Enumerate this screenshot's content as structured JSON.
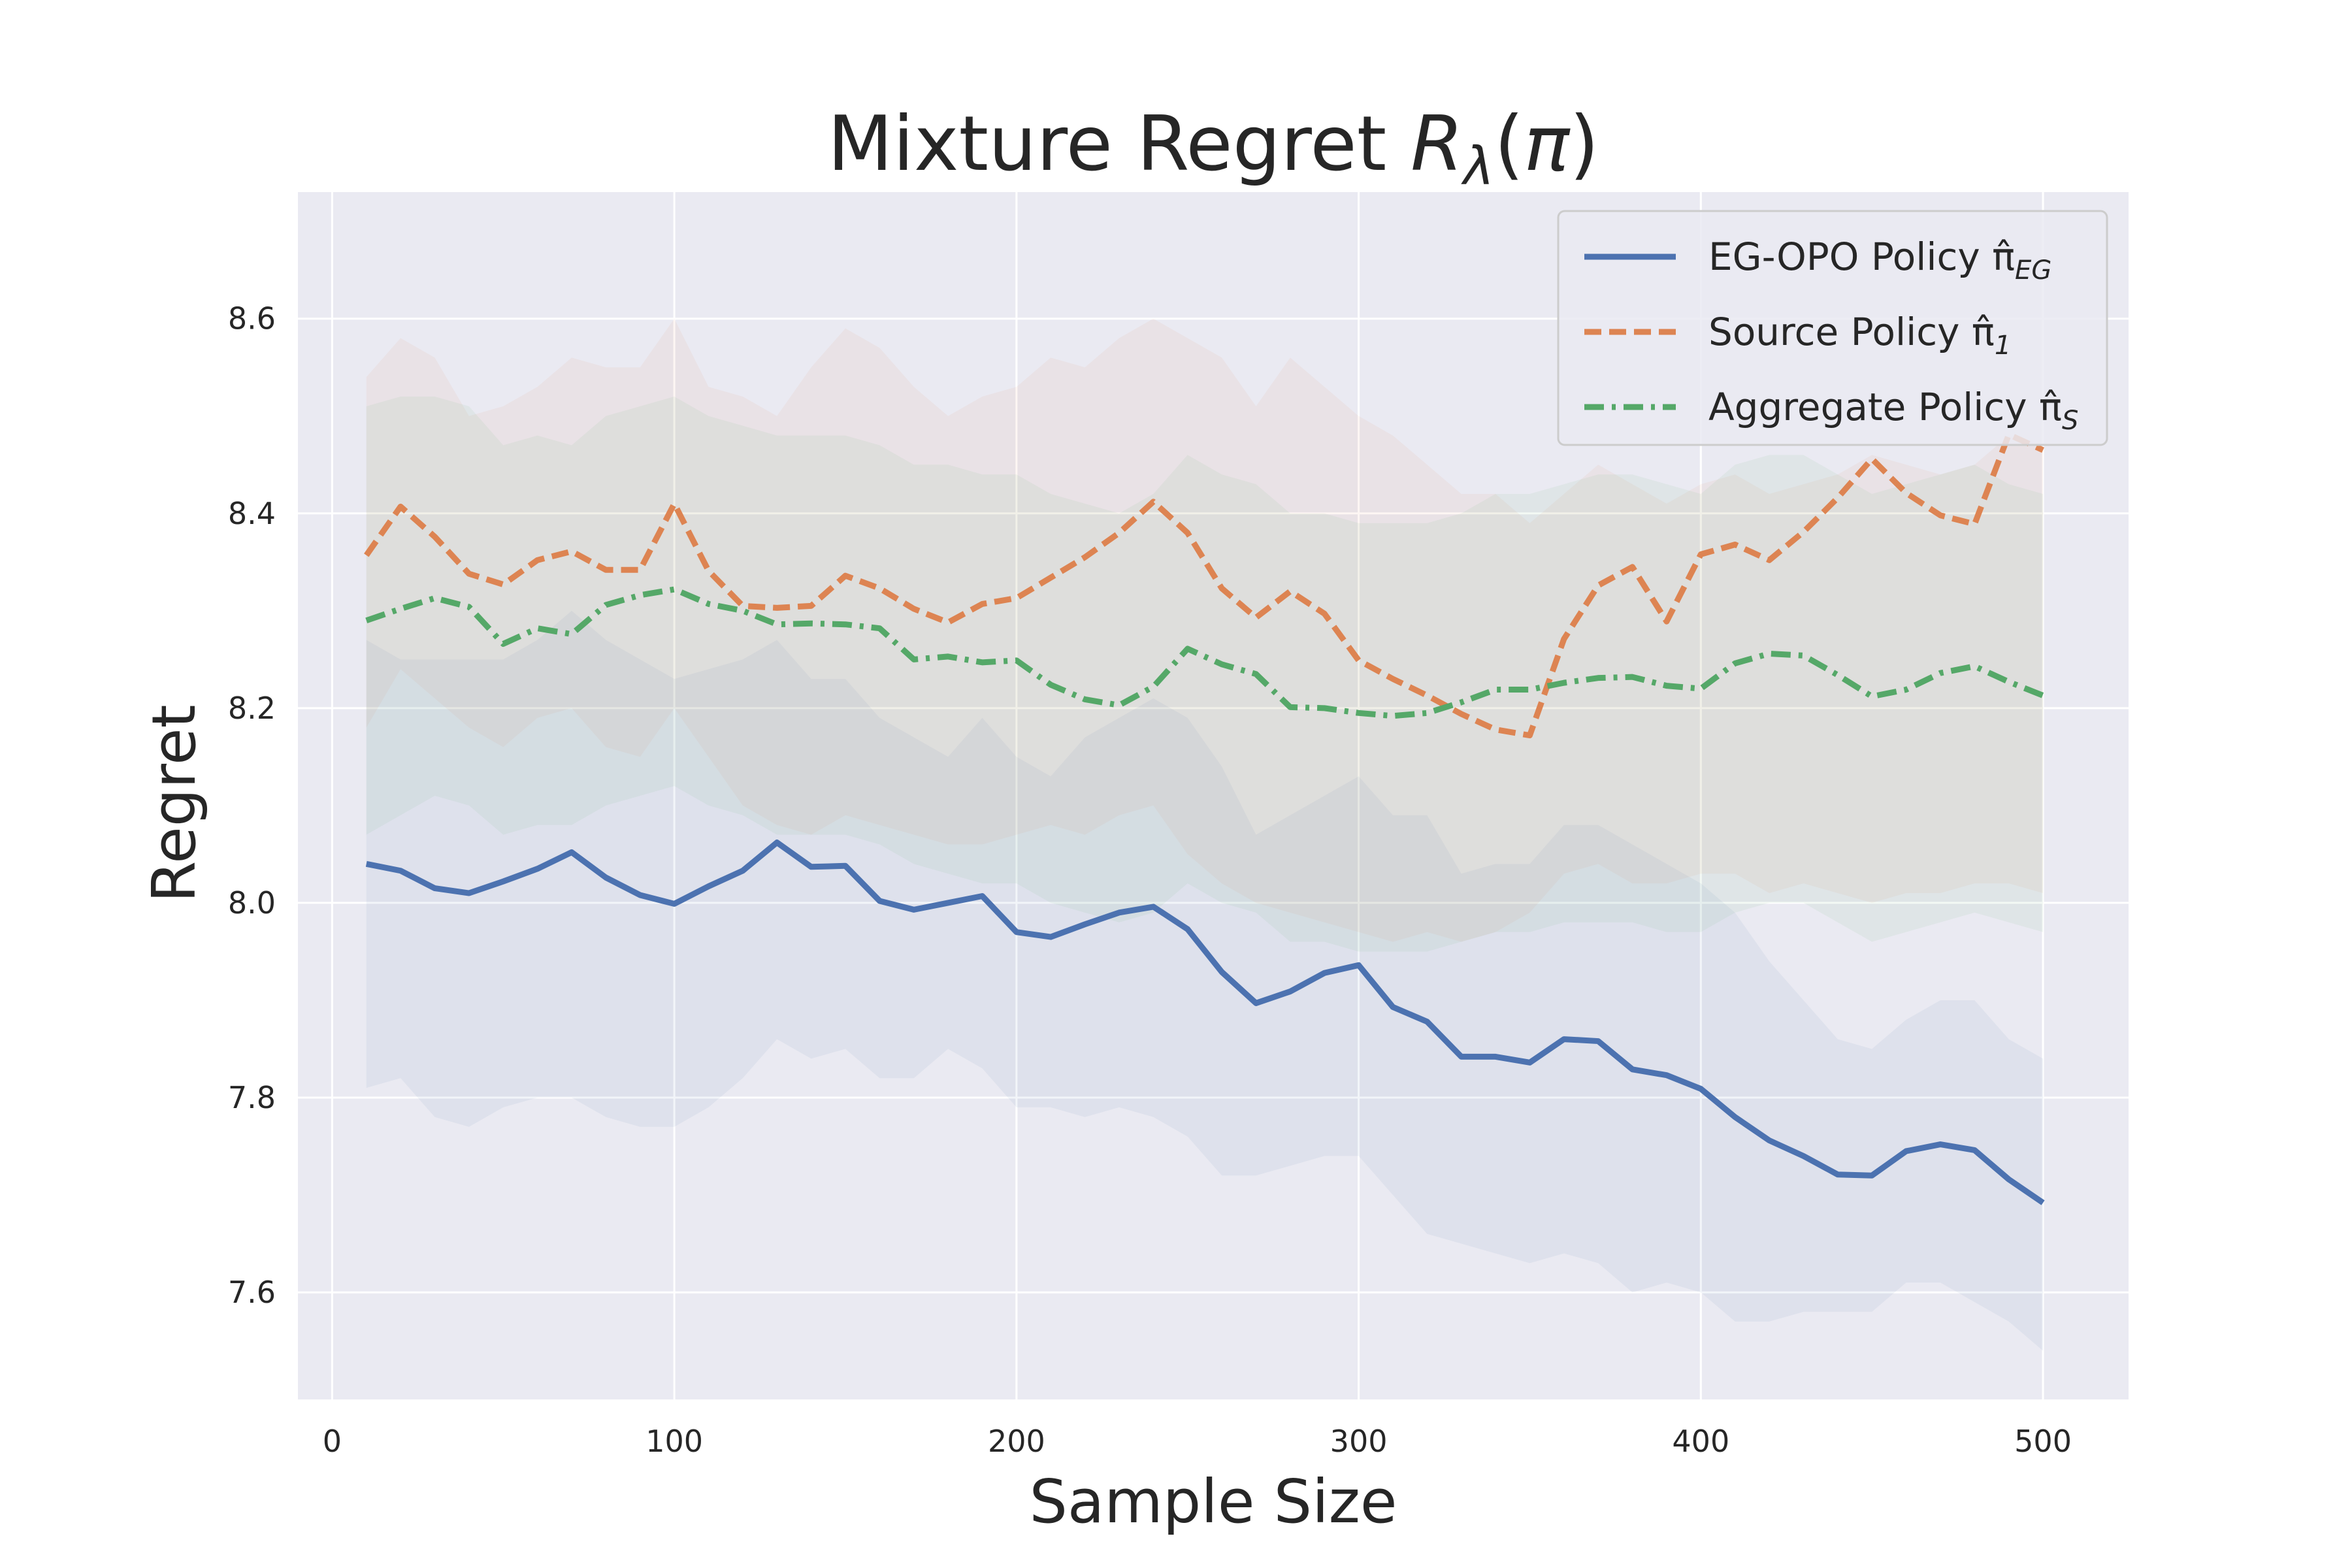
{
  "chart_data": {
    "type": "line",
    "title": "Mixture Regret  Rλ(π)",
    "xlabel": "Sample Size",
    "ylabel": "Regret",
    "xlim": [
      -10,
      525
    ],
    "ylim": [
      7.49,
      8.73
    ],
    "xticks": [
      0,
      100,
      200,
      300,
      400,
      500
    ],
    "yticks": [
      7.6,
      7.8,
      8.0,
      8.2,
      8.4,
      8.6
    ],
    "xtick_labels": [
      "0",
      "100",
      "200",
      "300",
      "400",
      "500"
    ],
    "ytick_labels": [
      "7.6",
      "7.8",
      "8.0",
      "8.2",
      "8.4",
      "8.6"
    ],
    "grid": true,
    "background": "#eaeaf2",
    "legend_position": "top-right",
    "x": [
      10,
      20,
      30,
      40,
      50,
      60,
      70,
      80,
      90,
      100,
      110,
      120,
      130,
      140,
      150,
      160,
      170,
      180,
      190,
      200,
      210,
      220,
      230,
      240,
      250,
      260,
      270,
      280,
      290,
      300,
      310,
      320,
      330,
      340,
      350,
      360,
      370,
      380,
      390,
      400,
      410,
      420,
      430,
      440,
      450,
      460,
      470,
      480,
      490,
      500
    ],
    "series": [
      {
        "name": "EG-OPO Policy π̂",
        "name_sub": "EG",
        "color": "#4c72b0",
        "style": "solid",
        "values": [
          8.04,
          8.033,
          8.015,
          8.01,
          8.022,
          8.035,
          8.052,
          8.026,
          8.008,
          7.999,
          8.017,
          8.033,
          8.062,
          8.037,
          8.038,
          8.002,
          7.993,
          8.0,
          8.007,
          7.97,
          7.965,
          7.978,
          7.99,
          7.996,
          7.973,
          7.929,
          7.897,
          7.909,
          7.928,
          7.936,
          7.893,
          7.878,
          7.842,
          7.842,
          7.836,
          7.86,
          7.858,
          7.829,
          7.823,
          7.809,
          7.78,
          7.756,
          7.74,
          7.721,
          7.72,
          7.745,
          7.752,
          7.746,
          7.716,
          7.692
        ],
        "band_low": [
          7.81,
          7.82,
          7.78,
          7.77,
          7.79,
          7.8,
          7.8,
          7.78,
          7.77,
          7.77,
          7.79,
          7.82,
          7.86,
          7.84,
          7.85,
          7.82,
          7.82,
          7.85,
          7.83,
          7.79,
          7.79,
          7.78,
          7.79,
          7.78,
          7.76,
          7.72,
          7.72,
          7.73,
          7.74,
          7.74,
          7.7,
          7.66,
          7.65,
          7.64,
          7.63,
          7.64,
          7.63,
          7.6,
          7.61,
          7.6,
          7.57,
          7.57,
          7.58,
          7.58,
          7.58,
          7.61,
          7.61,
          7.59,
          7.57,
          7.54
        ],
        "band_high": [
          8.27,
          8.25,
          8.25,
          8.25,
          8.25,
          8.27,
          8.3,
          8.27,
          8.25,
          8.23,
          8.24,
          8.25,
          8.27,
          8.23,
          8.23,
          8.19,
          8.17,
          8.15,
          8.19,
          8.15,
          8.13,
          8.17,
          8.19,
          8.21,
          8.19,
          8.14,
          8.07,
          8.09,
          8.11,
          8.13,
          8.09,
          8.09,
          8.03,
          8.04,
          8.04,
          8.08,
          8.08,
          8.06,
          8.04,
          8.02,
          7.99,
          7.94,
          7.9,
          7.86,
          7.85,
          7.88,
          7.9,
          7.9,
          7.86,
          7.84
        ]
      },
      {
        "name": "Source Policy π̂",
        "name_sub": "1",
        "color": "#dd8452",
        "style": "dashed",
        "values": [
          8.357,
          8.407,
          8.376,
          8.338,
          8.327,
          8.352,
          8.361,
          8.342,
          8.342,
          8.41,
          8.341,
          8.305,
          8.303,
          8.305,
          8.336,
          8.323,
          8.302,
          8.288,
          8.307,
          8.313,
          8.334,
          8.355,
          8.38,
          8.412,
          8.38,
          8.323,
          8.293,
          8.32,
          8.297,
          8.249,
          8.23,
          8.213,
          8.194,
          8.178,
          8.172,
          8.271,
          8.326,
          8.345,
          8.289,
          8.358,
          8.368,
          8.352,
          8.381,
          8.416,
          8.456,
          8.421,
          8.398,
          8.389,
          8.481,
          8.465
        ],
        "band_low": [
          8.18,
          8.24,
          8.21,
          8.18,
          8.16,
          8.19,
          8.2,
          8.16,
          8.15,
          8.2,
          8.15,
          8.1,
          8.08,
          8.07,
          8.09,
          8.08,
          8.07,
          8.06,
          8.06,
          8.07,
          8.08,
          8.07,
          8.09,
          8.1,
          8.05,
          8.02,
          8.0,
          7.99,
          7.98,
          7.97,
          7.96,
          7.97,
          7.96,
          7.97,
          7.99,
          8.03,
          8.04,
          8.02,
          8.02,
          8.03,
          8.03,
          8.01,
          8.02,
          8.01,
          8.0,
          8.01,
          8.01,
          8.02,
          8.02,
          8.01
        ],
        "band_high": [
          8.54,
          8.58,
          8.56,
          8.5,
          8.51,
          8.53,
          8.56,
          8.55,
          8.55,
          8.6,
          8.53,
          8.52,
          8.5,
          8.55,
          8.59,
          8.57,
          8.53,
          8.5,
          8.52,
          8.53,
          8.56,
          8.55,
          8.58,
          8.6,
          8.58,
          8.56,
          8.51,
          8.56,
          8.53,
          8.5,
          8.48,
          8.45,
          8.42,
          8.42,
          8.39,
          8.42,
          8.45,
          8.43,
          8.41,
          8.43,
          8.44,
          8.42,
          8.43,
          8.44,
          8.46,
          8.45,
          8.44,
          8.45,
          8.48,
          8.47
        ]
      },
      {
        "name": "Aggregate Policy π̂",
        "name_sub": "S",
        "color": "#55a868",
        "style": "dashdot",
        "values": [
          8.29,
          8.302,
          8.313,
          8.304,
          8.266,
          8.282,
          8.276,
          8.306,
          8.316,
          8.322,
          8.307,
          8.3,
          8.286,
          8.287,
          8.286,
          8.282,
          8.25,
          8.253,
          8.247,
          8.249,
          8.224,
          8.209,
          8.203,
          8.222,
          8.261,
          8.245,
          8.235,
          8.201,
          8.2,
          8.195,
          8.192,
          8.195,
          8.206,
          8.219,
          8.219,
          8.226,
          8.231,
          8.232,
          8.223,
          8.22,
          8.246,
          8.256,
          8.254,
          8.234,
          8.212,
          8.219,
          8.236,
          8.243,
          8.227,
          8.213
        ],
        "band_low": [
          8.07,
          8.09,
          8.11,
          8.1,
          8.07,
          8.08,
          8.08,
          8.1,
          8.11,
          8.12,
          8.1,
          8.09,
          8.07,
          8.07,
          8.07,
          8.06,
          8.04,
          8.03,
          8.02,
          8.02,
          8.0,
          7.99,
          7.98,
          7.99,
          8.02,
          8.0,
          7.99,
          7.96,
          7.96,
          7.95,
          7.95,
          7.95,
          7.96,
          7.97,
          7.97,
          7.98,
          7.98,
          7.98,
          7.97,
          7.97,
          7.99,
          8.0,
          8.0,
          7.98,
          7.96,
          7.97,
          7.98,
          7.99,
          7.98,
          7.97
        ],
        "band_high": [
          8.51,
          8.52,
          8.52,
          8.51,
          8.47,
          8.48,
          8.47,
          8.5,
          8.51,
          8.52,
          8.5,
          8.49,
          8.48,
          8.48,
          8.48,
          8.47,
          8.45,
          8.45,
          8.44,
          8.44,
          8.42,
          8.41,
          8.4,
          8.42,
          8.46,
          8.44,
          8.43,
          8.4,
          8.4,
          8.39,
          8.39,
          8.39,
          8.4,
          8.42,
          8.42,
          8.43,
          8.44,
          8.44,
          8.43,
          8.42,
          8.45,
          8.46,
          8.46,
          8.44,
          8.42,
          8.43,
          8.44,
          8.45,
          8.43,
          8.42
        ]
      }
    ]
  }
}
